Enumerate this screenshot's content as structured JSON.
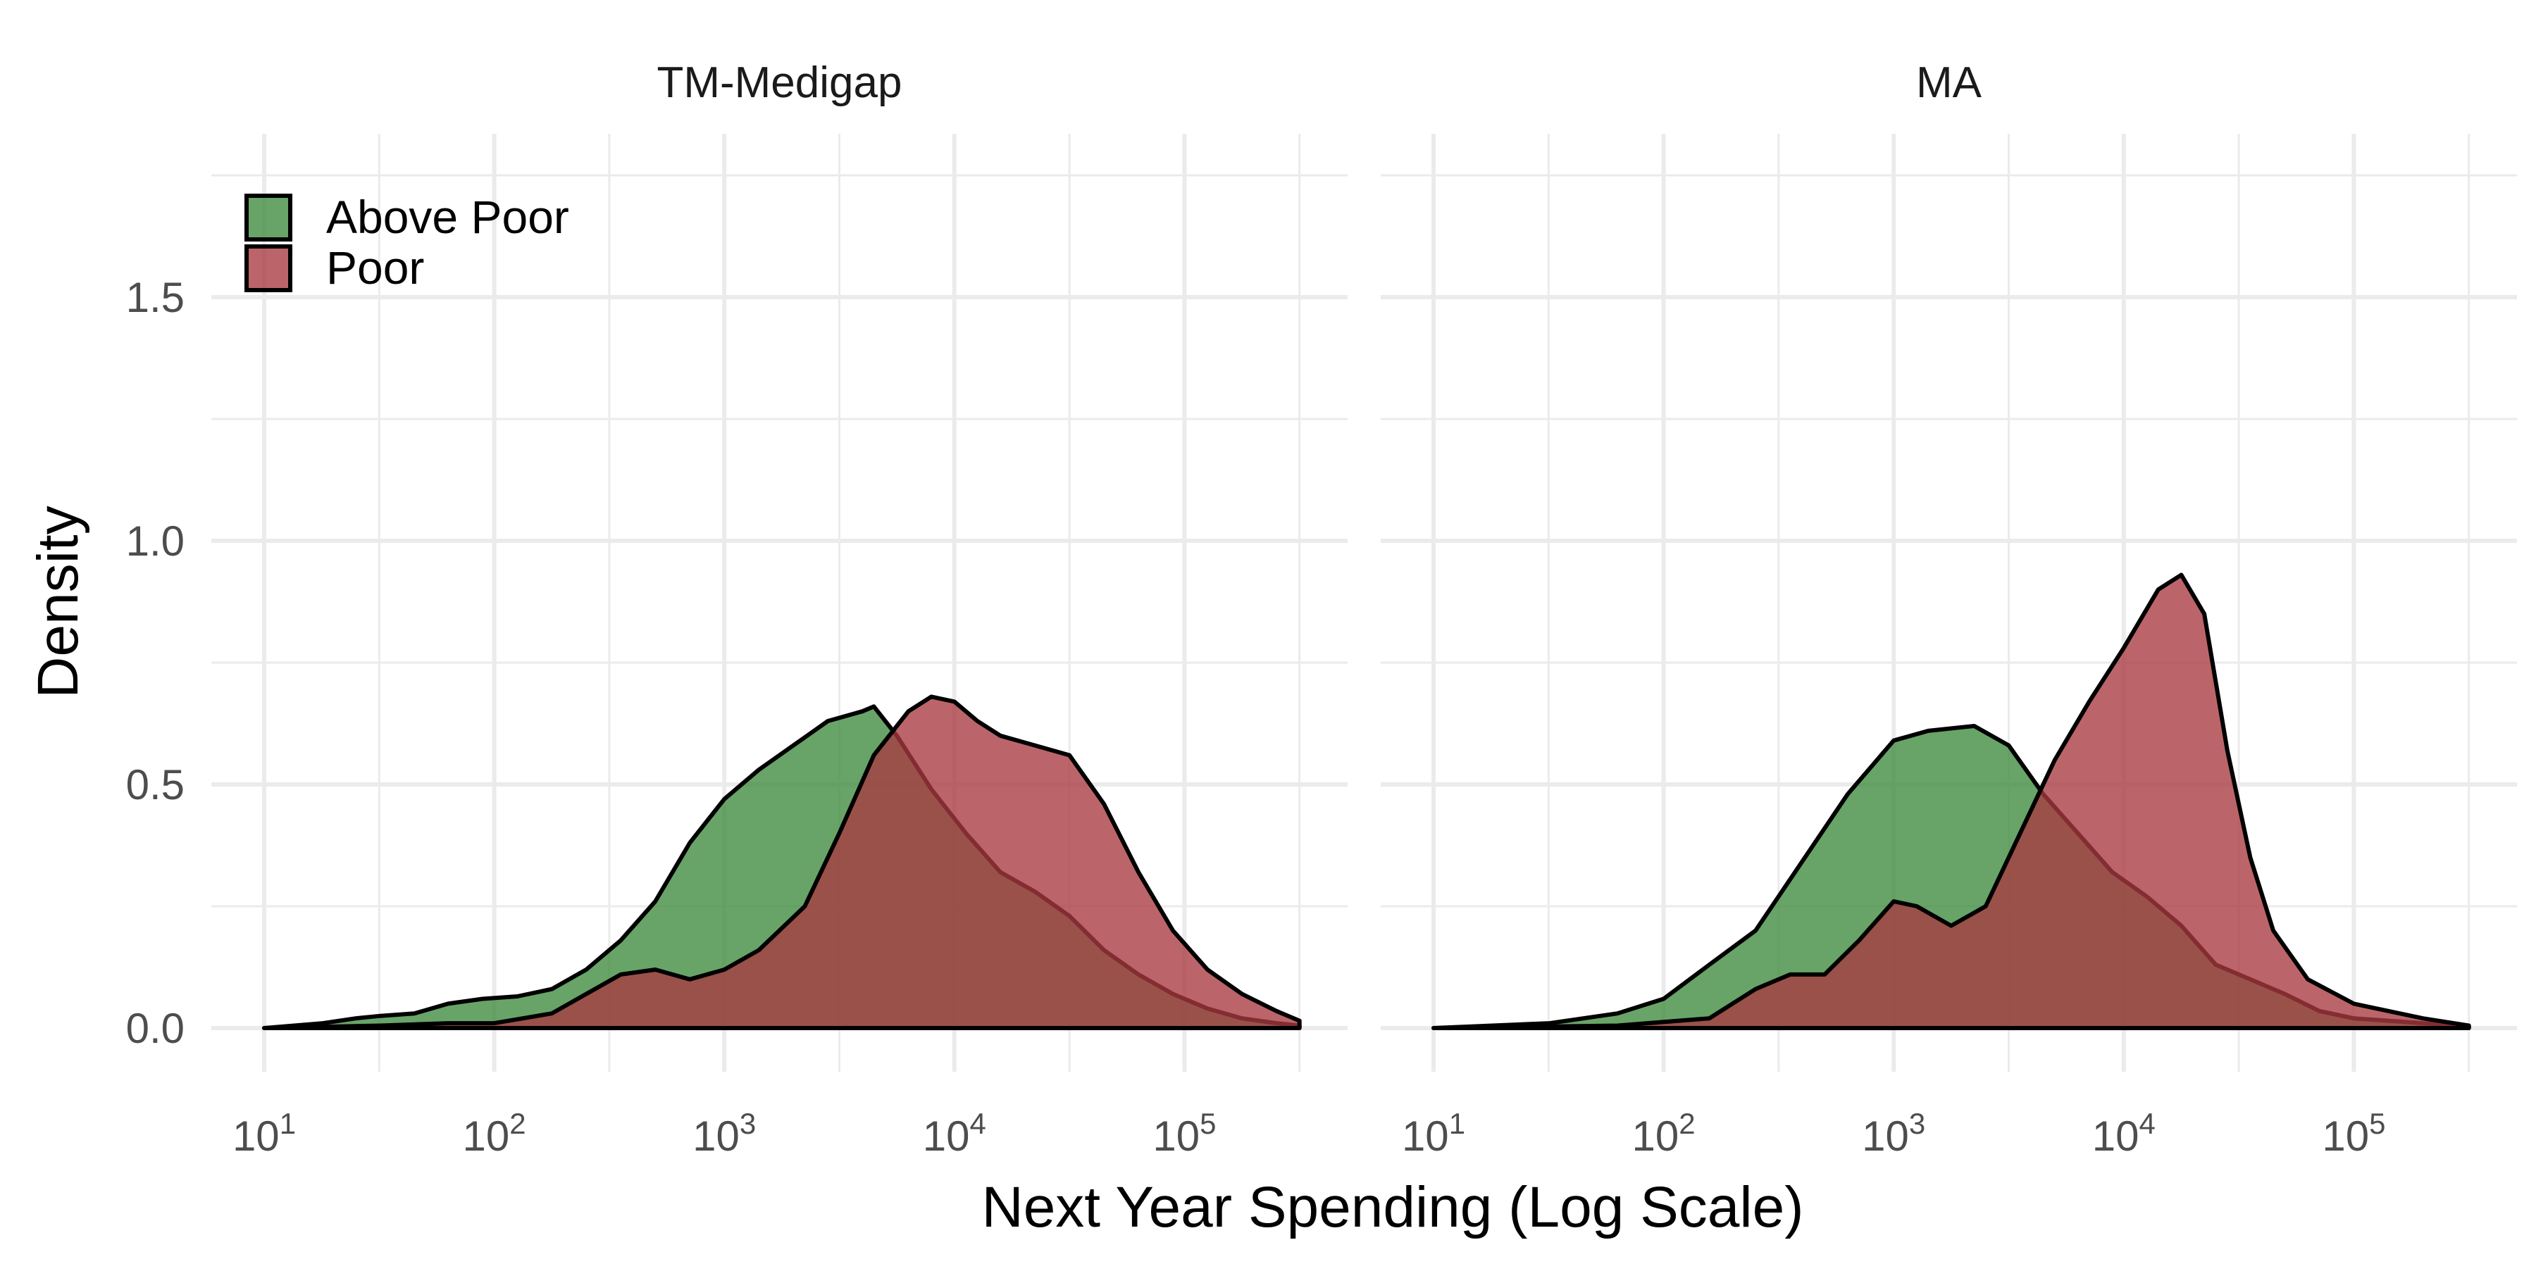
{
  "chart_data": {
    "type": "area",
    "subtype": "density",
    "x_scale": "log10",
    "xlabel": "Next Year Spending (Log Scale)",
    "ylabel": "Density",
    "xlim": [
      10,
      316228
    ],
    "ylim": [
      0,
      1.8
    ],
    "x_ticks": [
      10,
      100,
      1000,
      10000,
      100000
    ],
    "x_tick_labels": [
      {
        "base": "10",
        "exp": "1"
      },
      {
        "base": "10",
        "exp": "2"
      },
      {
        "base": "10",
        "exp": "3"
      },
      {
        "base": "10",
        "exp": "4"
      },
      {
        "base": "10",
        "exp": "5"
      }
    ],
    "y_ticks": [
      0.0,
      0.5,
      1.0,
      1.5
    ],
    "y_tick_labels": [
      "0.0",
      "0.5",
      "1.0",
      "1.5"
    ],
    "grid": true,
    "legend": {
      "position": "top-left",
      "entries": [
        "Above Poor",
        "Poor"
      ]
    },
    "colors": {
      "Above Poor": "#3e8a3e",
      "Poor": "#a83a40"
    },
    "fill_opacity": 0.78,
    "panels": [
      {
        "title": "TM-Medigap",
        "series": [
          {
            "name": "Above Poor",
            "x": [
              10,
              18,
              25,
              32,
              45,
              63,
              89,
              126,
              178,
              251,
              355,
              501,
              708,
              1000,
              1413,
              1995,
              2818,
              3981,
              4467,
              5623,
              7943,
              11220,
              15849,
              22387,
              31623,
              44668,
              63096,
              89125,
              125893,
              177828,
              251189,
              316228
            ],
            "y": [
              0.0,
              0.01,
              0.02,
              0.025,
              0.03,
              0.05,
              0.06,
              0.065,
              0.08,
              0.12,
              0.18,
              0.26,
              0.38,
              0.47,
              0.53,
              0.58,
              0.63,
              0.65,
              0.66,
              0.6,
              0.49,
              0.4,
              0.32,
              0.28,
              0.23,
              0.16,
              0.11,
              0.07,
              0.04,
              0.02,
              0.01,
              0.005
            ]
          },
          {
            "name": "Poor",
            "x": [
              10,
              32,
              63,
              100,
              178,
              251,
              355,
              501,
              708,
              1000,
              1413,
              2239,
              3162,
              4467,
              6310,
              7943,
              10000,
              12589,
              15849,
              22387,
              31623,
              44668,
              63096,
              89125,
              125893,
              177828,
              251189,
              316228
            ],
            "y": [
              0.0,
              0.005,
              0.01,
              0.01,
              0.03,
              0.07,
              0.11,
              0.12,
              0.1,
              0.12,
              0.16,
              0.25,
              0.4,
              0.56,
              0.65,
              0.68,
              0.67,
              0.63,
              0.6,
              0.58,
              0.56,
              0.46,
              0.32,
              0.2,
              0.12,
              0.07,
              0.035,
              0.015
            ]
          }
        ]
      },
      {
        "title": "MA",
        "series": [
          {
            "name": "Above Poor",
            "x": [
              10,
              32,
              63,
              100,
              158,
              251,
              398,
              631,
              1000,
              1413,
              2239,
              3162,
              4467,
              6310,
              8913,
              12589,
              17783,
              25119,
              35481,
              50119,
              70795,
              100000,
              141254,
              199526,
              316228
            ],
            "y": [
              0.0,
              0.01,
              0.03,
              0.06,
              0.13,
              0.2,
              0.34,
              0.48,
              0.59,
              0.61,
              0.62,
              0.58,
              0.48,
              0.4,
              0.32,
              0.27,
              0.21,
              0.13,
              0.1,
              0.07,
              0.035,
              0.02,
              0.015,
              0.01,
              0.003
            ]
          },
          {
            "name": "Poor",
            "x": [
              10,
              63,
              158,
              251,
              355,
              501,
              708,
              1000,
              1259,
              1778,
              2512,
              3548,
              5012,
              7079,
              10000,
              14125,
              17783,
              22387,
              28184,
              35481,
              44668,
              63096,
              100000,
              141254,
              199526,
              316228
            ],
            "y": [
              0.0,
              0.005,
              0.02,
              0.08,
              0.11,
              0.11,
              0.18,
              0.26,
              0.25,
              0.21,
              0.25,
              0.4,
              0.55,
              0.67,
              0.78,
              0.9,
              0.93,
              0.85,
              0.57,
              0.35,
              0.2,
              0.1,
              0.05,
              0.035,
              0.02,
              0.005
            ]
          }
        ]
      }
    ]
  }
}
